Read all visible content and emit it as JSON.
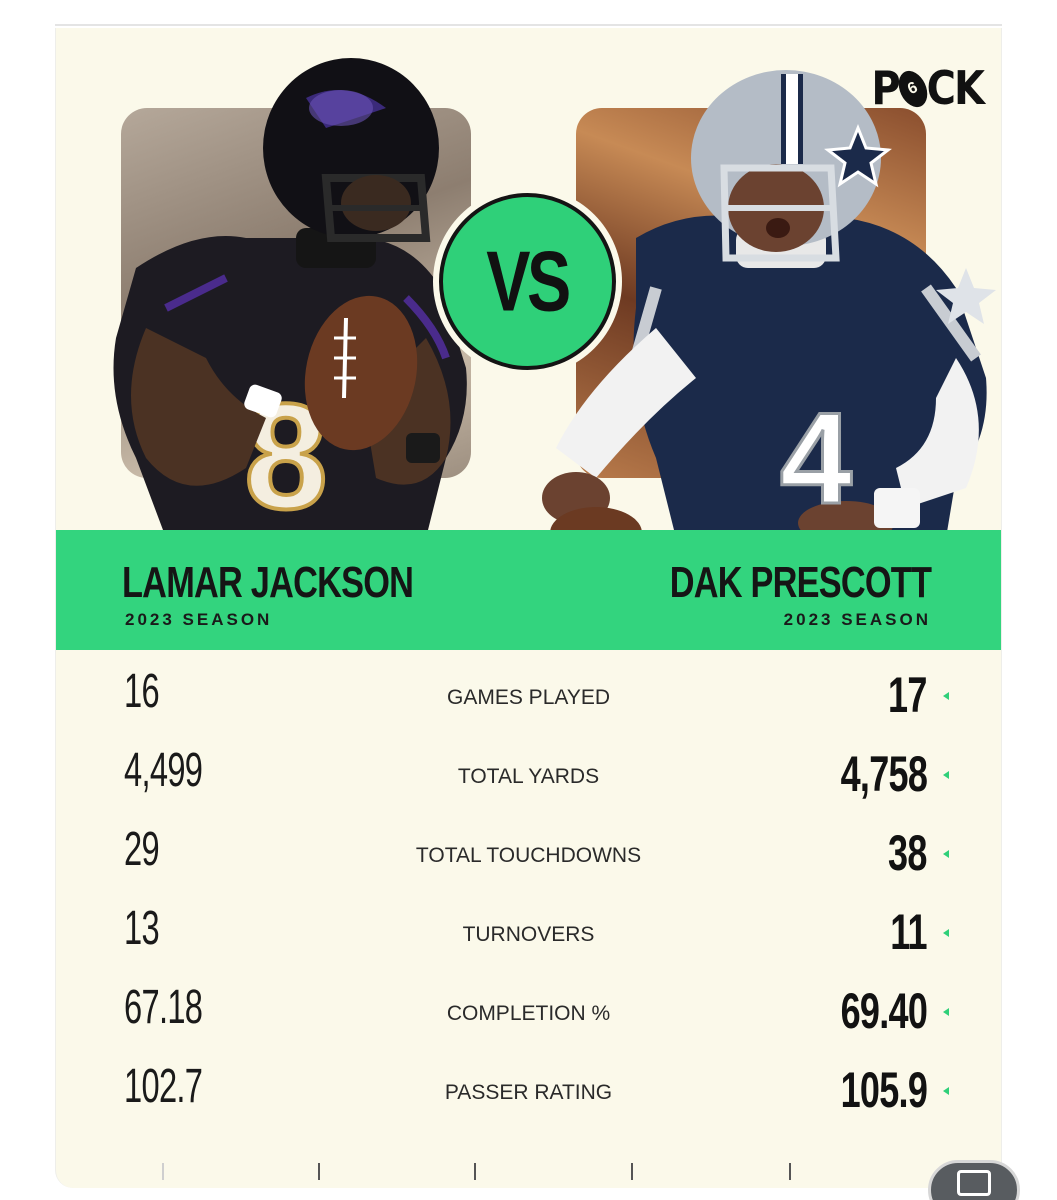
{
  "brand": {
    "logo_text_1": "P",
    "logo_ball": "6",
    "logo_text_2": "CK"
  },
  "vs_label": "VS",
  "players": {
    "left": {
      "name": "LAMAR JACKSON",
      "season": "2023 SEASON",
      "jersey_number": "8"
    },
    "right": {
      "name": "DAK PRESCOTT",
      "season": "2023 SEASON",
      "jersey_number": "4"
    }
  },
  "stats": [
    {
      "label": "GAMES PLAYED",
      "left": "16",
      "right": "17"
    },
    {
      "label": "TOTAL YARDS",
      "left": "4,499",
      "right": "4,758"
    },
    {
      "label": "TOTAL TOUCHDOWNS",
      "left": "29",
      "right": "38"
    },
    {
      "label": "TURNOVERS",
      "left": "13",
      "right": "11"
    },
    {
      "label": "COMPLETION %",
      "left": "67.18",
      "right": "69.40"
    },
    {
      "label": "PASSER RATING",
      "left": "102.7",
      "right": "105.9"
    }
  ],
  "colors": {
    "accent_green": "#33d47e",
    "card_background": "#fbf9ea",
    "ravens_purple": "#241773",
    "cowboys_navy": "#1b2a4a"
  }
}
